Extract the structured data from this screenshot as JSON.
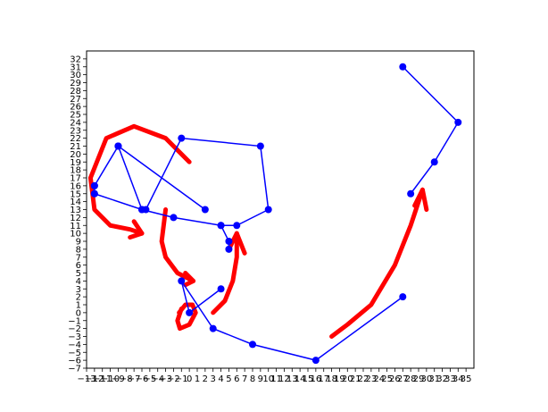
{
  "chart_data": {
    "type": "line",
    "title": "",
    "xlabel": "",
    "ylabel": "",
    "xlim": [
      -13,
      36
    ],
    "ylim": [
      -7,
      33
    ],
    "x_ticks": [
      -13,
      -12,
      -11,
      -10,
      -9,
      -8,
      -7,
      -6,
      -5,
      -4,
      -3,
      -2,
      -1,
      0,
      1,
      2,
      3,
      4,
      5,
      6,
      7,
      8,
      9,
      10,
      11,
      12,
      13,
      14,
      15,
      16,
      17,
      18,
      19,
      20,
      21,
      22,
      23,
      24,
      25,
      26,
      27,
      28,
      29,
      30,
      31,
      32,
      33,
      34,
      35
    ],
    "y_ticks": [
      -7,
      -6,
      -5,
      -4,
      -3,
      -2,
      -1,
      0,
      1,
      2,
      3,
      4,
      5,
      6,
      7,
      8,
      9,
      10,
      11,
      12,
      13,
      14,
      15,
      16,
      17,
      18,
      19,
      20,
      21,
      22,
      23,
      24,
      25,
      26,
      27,
      28,
      29,
      30,
      31,
      32
    ],
    "grid": false,
    "series": [
      {
        "color": "#0000ff",
        "marker": "circle",
        "points": [
          {
            "x": -12,
            "y": 15
          },
          {
            "x": -6,
            "y": 13
          },
          {
            "x": -2,
            "y": 12
          },
          {
            "x": 4,
            "y": 11
          },
          {
            "x": 6,
            "y": 11
          },
          {
            "x": 10,
            "y": 13
          },
          {
            "x": 9,
            "y": 21
          },
          {
            "x": -1,
            "y": 22
          },
          {
            "x": -5.5,
            "y": 13
          },
          {
            "x": -6,
            "y": 13
          },
          {
            "x": -9,
            "y": 21
          },
          {
            "x": -12,
            "y": 16
          },
          {
            "x": -9,
            "y": 21
          },
          {
            "x": 2,
            "y": 13
          },
          {
            "x": -9,
            "y": 21
          },
          {
            "x": -12,
            "y": 16
          },
          {
            "x": -12,
            "y": 15
          }
        ]
      },
      {
        "color": "#0000ff",
        "marker": "circle",
        "points": [
          {
            "x": 4,
            "y": 11
          },
          {
            "x": 5,
            "y": 9
          },
          {
            "x": 5,
            "y": 8
          }
        ]
      },
      {
        "color": "#0000ff",
        "marker": "circle",
        "points": [
          {
            "x": 4,
            "y": 3
          },
          {
            "x": 0,
            "y": 0
          },
          {
            "x": -1,
            "y": 4
          },
          {
            "x": 3,
            "y": -2
          },
          {
            "x": 8,
            "y": -4
          },
          {
            "x": 16,
            "y": -6
          },
          {
            "x": 27,
            "y": 2
          }
        ]
      },
      {
        "color": "#0000ff",
        "marker": "circle",
        "points": [
          {
            "x": 28,
            "y": 15
          },
          {
            "x": 31,
            "y": 19
          },
          {
            "x": 34,
            "y": 24
          },
          {
            "x": 27,
            "y": 31
          }
        ]
      }
    ],
    "annotations": [
      {
        "type": "freehand-arrow",
        "color": "#ff0000",
        "points": [
          [
            0,
            19
          ],
          [
            -3,
            22
          ],
          [
            -7,
            23.5
          ],
          [
            -10.5,
            22
          ],
          [
            -12.5,
            17
          ],
          [
            -12,
            13
          ],
          [
            -10,
            11
          ],
          [
            -7.5,
            10.5
          ],
          [
            -6,
            10
          ]
        ],
        "head": [
          [
            -7,
            11.5
          ],
          [
            -6,
            10
          ],
          [
            -7.5,
            9.5
          ]
        ]
      },
      {
        "type": "freehand-arrow",
        "color": "#ff0000",
        "points": [
          [
            -3,
            13
          ],
          [
            -3.5,
            9
          ],
          [
            -3,
            7
          ],
          [
            -1.5,
            5
          ],
          [
            0.5,
            4
          ]
        ],
        "head": [
          [
            -0.5,
            5
          ],
          [
            0.5,
            4
          ],
          [
            -0.5,
            3.5
          ]
        ]
      },
      {
        "type": "freehand-arrow",
        "color": "#ff0000",
        "points": [
          [
            3,
            0
          ],
          [
            4.5,
            1.5
          ],
          [
            5.5,
            4
          ],
          [
            6,
            7
          ],
          [
            6,
            10
          ]
        ],
        "head": [
          [
            5,
            8
          ],
          [
            6,
            10
          ],
          [
            7,
            7.5
          ]
        ]
      },
      {
        "type": "freehand-arrow",
        "color": "#ff0000",
        "points": [
          [
            18,
            -3
          ],
          [
            20,
            -1.5
          ],
          [
            23,
            1
          ],
          [
            26,
            6
          ],
          [
            28,
            11
          ],
          [
            29.5,
            15.5
          ]
        ],
        "head": [
          [
            28.5,
            13.5
          ],
          [
            29.5,
            15.5
          ],
          [
            30,
            13
          ]
        ]
      },
      {
        "type": "freehand-loop",
        "color": "#ff0000",
        "points": [
          [
            -1,
            0.5
          ],
          [
            -1.5,
            -1
          ],
          [
            -1.2,
            -2
          ],
          [
            0,
            -1.5
          ],
          [
            0.8,
            0
          ],
          [
            0.4,
            1
          ],
          [
            -0.5,
            1
          ],
          [
            -1.3,
            0
          ]
        ]
      }
    ]
  }
}
